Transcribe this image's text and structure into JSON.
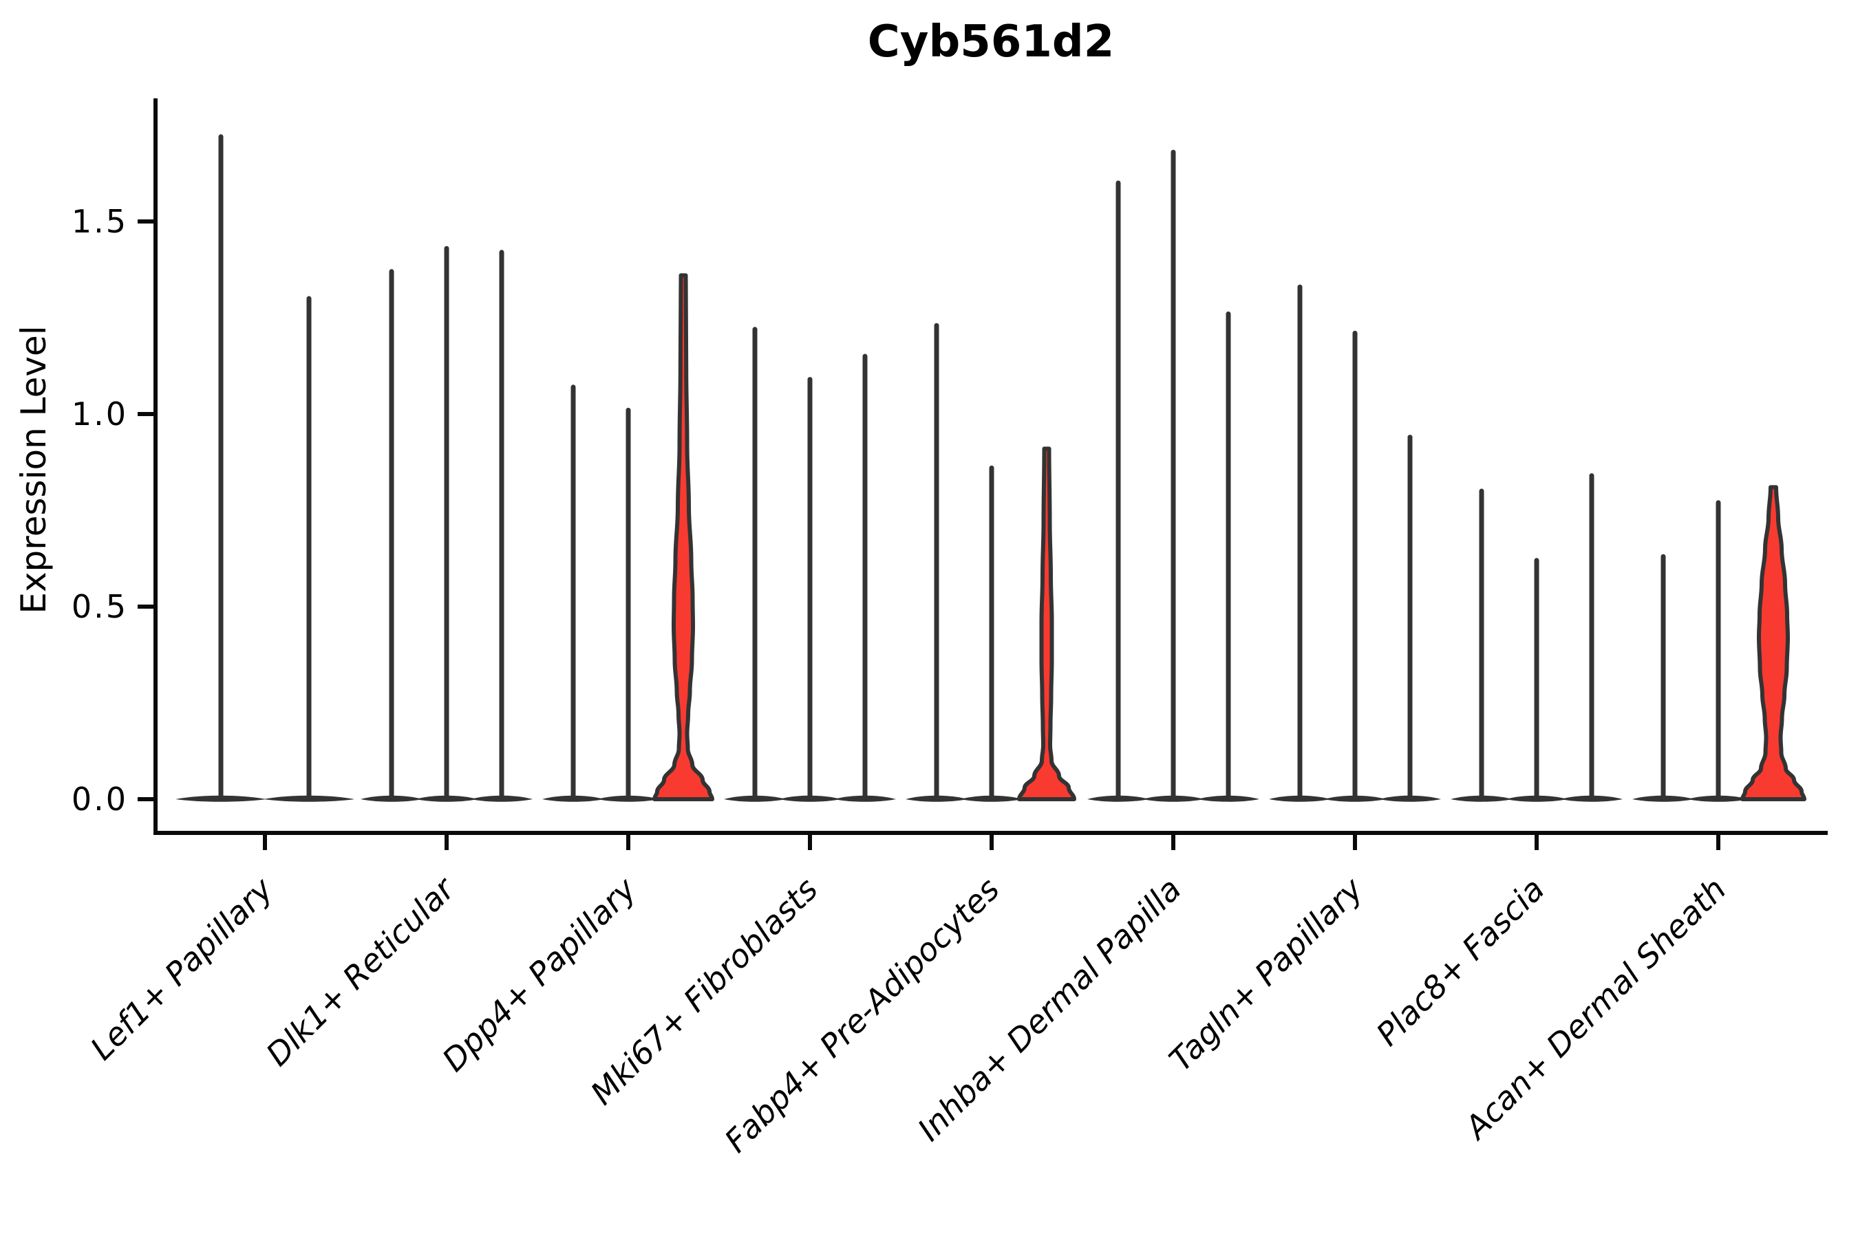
{
  "chart_data": {
    "type": "violin",
    "title": "Cyb561d2",
    "ylabel": "Expression Level",
    "xlabel": "",
    "ytick_labels": [
      "0.0",
      "0.5",
      "1.0",
      "1.5"
    ],
    "ytick_values": [
      0,
      0.5,
      1.0,
      1.5
    ],
    "ylim": [
      -0.09,
      1.82
    ],
    "grid": false,
    "legend": "none",
    "colors": {
      "violin_line": "#333333",
      "highlight_fill": "#f93a31",
      "axis": "#0a0a0a",
      "text": "#000000"
    },
    "groups": [
      {
        "label": "Lef1+ Papillary",
        "violins": [
          {
            "max": 1.72,
            "highlight": false
          },
          {
            "max": 1.3,
            "highlight": false
          }
        ]
      },
      {
        "label": "Dlk1+ Reticular",
        "violins": [
          {
            "max": 1.37,
            "highlight": false
          },
          {
            "max": 1.43,
            "highlight": false
          },
          {
            "max": 1.42,
            "highlight": false
          }
        ]
      },
      {
        "label": "Dpp4+ Papillary",
        "violins": [
          {
            "max": 1.07,
            "highlight": false
          },
          {
            "max": 1.01,
            "highlight": false
          },
          {
            "max": 1.36,
            "highlight": true,
            "profile": [
              [
                1.36,
                3.5
              ],
              [
                1.12,
                4.2
              ],
              [
                0.92,
                5.5
              ],
              [
                0.76,
                8
              ],
              [
                0.62,
                11.5
              ],
              [
                0.52,
                13.5
              ],
              [
                0.45,
                14
              ],
              [
                0.36,
                12.5
              ],
              [
                0.28,
                9.5
              ],
              [
                0.22,
                7
              ],
              [
                0.17,
                5.5
              ],
              [
                0.13,
                6.5
              ],
              [
                0.09,
                13
              ],
              [
                0.05,
                28
              ],
              [
                0.02,
                38
              ],
              [
                0,
                42
              ]
            ]
          }
        ]
      },
      {
        "label": "Mki67+ Fibroblasts",
        "violins": [
          {
            "max": 1.22,
            "highlight": false
          },
          {
            "max": 1.09,
            "highlight": false
          },
          {
            "max": 1.15,
            "highlight": false
          }
        ]
      },
      {
        "label": "Fabp4+ Pre-Adipocytes",
        "violins": [
          {
            "max": 1.23,
            "highlight": false
          },
          {
            "max": 0.86,
            "highlight": false
          },
          {
            "max": 0.91,
            "highlight": true,
            "profile": [
              [
                0.91,
                3.5
              ],
              [
                0.72,
                4.5
              ],
              [
                0.58,
                6
              ],
              [
                0.46,
                7.5
              ],
              [
                0.36,
                7.5
              ],
              [
                0.27,
                6.5
              ],
              [
                0.19,
                5.5
              ],
              [
                0.14,
                5
              ],
              [
                0.1,
                7
              ],
              [
                0.06,
                18
              ],
              [
                0.03,
                32
              ],
              [
                0,
                40
              ]
            ]
          }
        ]
      },
      {
        "label": "Inhba+ Dermal Papilla",
        "violins": [
          {
            "max": 1.6,
            "highlight": false
          },
          {
            "max": 1.68,
            "highlight": false
          },
          {
            "max": 1.26,
            "highlight": false
          }
        ]
      },
      {
        "label": "Tagln+ Papillary",
        "violins": [
          {
            "max": 1.33,
            "highlight": false
          },
          {
            "max": 1.21,
            "highlight": false
          },
          {
            "max": 0.94,
            "highlight": false
          }
        ]
      },
      {
        "label": "Plac8+ Fascia",
        "violins": [
          {
            "max": 0.8,
            "highlight": false
          },
          {
            "max": 0.62,
            "highlight": false
          },
          {
            "max": 0.84,
            "highlight": false
          }
        ]
      },
      {
        "label": "Acan+ Dermal Sheath",
        "violins": [
          {
            "max": 0.63,
            "highlight": false
          },
          {
            "max": 0.77,
            "highlight": false
          },
          {
            "max": 0.81,
            "highlight": true,
            "profile": [
              [
                0.81,
                4
              ],
              [
                0.73,
                7
              ],
              [
                0.65,
                12
              ],
              [
                0.56,
                17
              ],
              [
                0.48,
                20
              ],
              [
                0.42,
                21
              ],
              [
                0.34,
                19.5
              ],
              [
                0.27,
                16
              ],
              [
                0.21,
                12.5
              ],
              [
                0.16,
                10.5
              ],
              [
                0.12,
                11.5
              ],
              [
                0.08,
                18
              ],
              [
                0.05,
                30
              ],
              [
                0.02,
                41
              ],
              [
                0,
                45
              ]
            ]
          }
        ]
      }
    ]
  }
}
